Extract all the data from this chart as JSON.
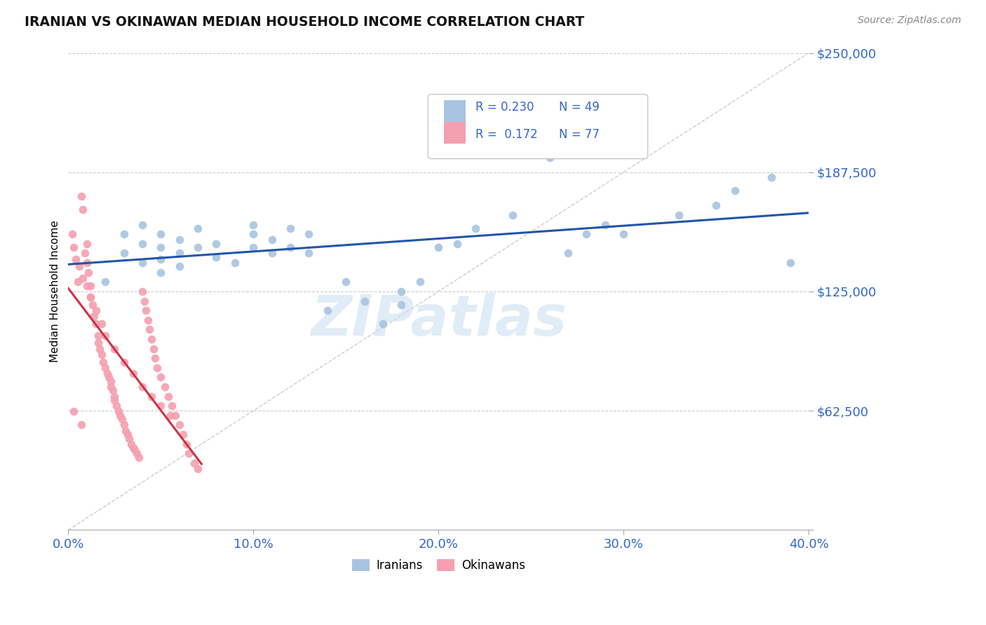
{
  "title": "IRANIAN VS OKINAWAN MEDIAN HOUSEHOLD INCOME CORRELATION CHART",
  "source": "Source: ZipAtlas.com",
  "ylabel": "Median Household Income",
  "xlim": [
    0,
    0.4
  ],
  "ylim": [
    0,
    250000
  ],
  "yticks": [
    0,
    62500,
    125000,
    187500,
    250000
  ],
  "ytick_labels": [
    "",
    "$62,500",
    "$125,000",
    "$187,500",
    "$250,000"
  ],
  "xticks": [
    0.0,
    0.1,
    0.2,
    0.3,
    0.4
  ],
  "xtick_labels": [
    "0.0%",
    "10.0%",
    "20.0%",
    "30.0%",
    "40.0%"
  ],
  "iranians_R": 0.23,
  "iranians_N": 49,
  "okinawans_R": 0.172,
  "okinawans_N": 77,
  "iranian_color": "#a8c4e0",
  "okinawan_color": "#f4a0b0",
  "trendline_iranian_color": "#2255aa",
  "trendline_okinawan_color": "#cc3344",
  "watermark": "ZIPatlas",
  "iranians_x": [
    0.02,
    0.03,
    0.03,
    0.04,
    0.04,
    0.04,
    0.05,
    0.05,
    0.05,
    0.05,
    0.06,
    0.06,
    0.06,
    0.07,
    0.07,
    0.08,
    0.08,
    0.09,
    0.1,
    0.1,
    0.1,
    0.11,
    0.11,
    0.12,
    0.12,
    0.13,
    0.13,
    0.14,
    0.15,
    0.16,
    0.17,
    0.18,
    0.18,
    0.19,
    0.2,
    0.21,
    0.22,
    0.24,
    0.25,
    0.26,
    0.27,
    0.28,
    0.29,
    0.3,
    0.33,
    0.35,
    0.36,
    0.38,
    0.39
  ],
  "iranians_y": [
    130000,
    145000,
    155000,
    140000,
    150000,
    160000,
    135000,
    142000,
    148000,
    155000,
    138000,
    145000,
    152000,
    148000,
    158000,
    143000,
    150000,
    140000,
    155000,
    148000,
    160000,
    145000,
    152000,
    158000,
    148000,
    145000,
    155000,
    115000,
    130000,
    120000,
    108000,
    118000,
    125000,
    130000,
    148000,
    150000,
    158000,
    165000,
    210000,
    195000,
    145000,
    155000,
    160000,
    155000,
    165000,
    170000,
    178000,
    185000,
    140000
  ],
  "okinawans_x": [
    0.005,
    0.007,
    0.008,
    0.009,
    0.01,
    0.01,
    0.011,
    0.012,
    0.012,
    0.013,
    0.014,
    0.015,
    0.016,
    0.016,
    0.017,
    0.018,
    0.019,
    0.02,
    0.021,
    0.022,
    0.023,
    0.023,
    0.024,
    0.025,
    0.025,
    0.026,
    0.027,
    0.028,
    0.029,
    0.03,
    0.031,
    0.032,
    0.033,
    0.034,
    0.035,
    0.036,
    0.037,
    0.038,
    0.04,
    0.041,
    0.042,
    0.043,
    0.044,
    0.045,
    0.046,
    0.047,
    0.048,
    0.05,
    0.052,
    0.054,
    0.056,
    0.058,
    0.06,
    0.062,
    0.064,
    0.065,
    0.068,
    0.07,
    0.002,
    0.003,
    0.004,
    0.006,
    0.008,
    0.01,
    0.012,
    0.015,
    0.018,
    0.02,
    0.025,
    0.03,
    0.035,
    0.04,
    0.045,
    0.05,
    0.055,
    0.003,
    0.007
  ],
  "okinawans_y": [
    130000,
    175000,
    168000,
    145000,
    140000,
    150000,
    135000,
    128000,
    122000,
    118000,
    112000,
    108000,
    102000,
    98000,
    95000,
    92000,
    88000,
    85000,
    82000,
    80000,
    78000,
    75000,
    73000,
    70000,
    68000,
    65000,
    62000,
    60000,
    58000,
    55000,
    52000,
    50000,
    48000,
    45000,
    43000,
    42000,
    40000,
    38000,
    125000,
    120000,
    115000,
    110000,
    105000,
    100000,
    95000,
    90000,
    85000,
    80000,
    75000,
    70000,
    65000,
    60000,
    55000,
    50000,
    45000,
    40000,
    35000,
    32000,
    155000,
    148000,
    142000,
    138000,
    132000,
    128000,
    122000,
    115000,
    108000,
    102000,
    95000,
    88000,
    82000,
    75000,
    70000,
    65000,
    60000,
    62000,
    55000
  ]
}
